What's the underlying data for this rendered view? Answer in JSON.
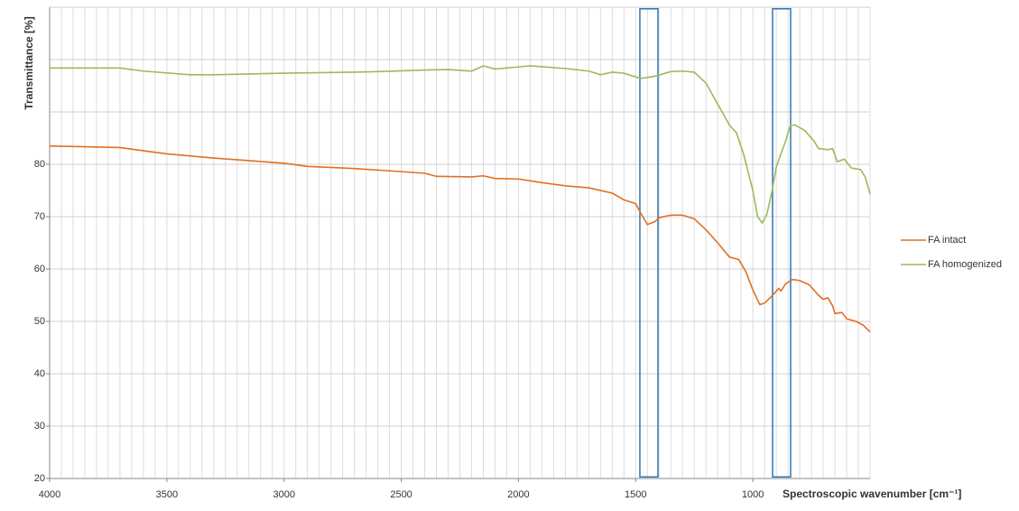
{
  "chart_data": {
    "type": "line",
    "y_label": "Transmittance [%]",
    "x_label": "Spectroscopic wavenumber [cm⁻¹]",
    "xlim": [
      4000,
      500
    ],
    "xticks": [
      4000,
      3500,
      3000,
      2500,
      2000,
      1500,
      1000
    ],
    "ylim": [
      20,
      110
    ],
    "yticks": [
      20,
      30,
      40,
      50,
      60,
      70,
      80
    ],
    "y_grid": [
      20,
      30,
      40,
      50,
      60,
      70,
      80,
      90,
      100,
      110
    ],
    "x_grid_step": 50,
    "grid": true,
    "legend": "right",
    "highlights": [
      {
        "x": [
          1482,
          1405
        ],
        "y": [
          20.3,
          109.7
        ],
        "color": "#2e75b6"
      },
      {
        "x": [
          916,
          839
        ],
        "y": [
          20.3,
          109.7
        ],
        "color": "#2e75b6"
      }
    ],
    "series": [
      {
        "name": "FA intact",
        "color": "#e07020",
        "x": [
          4000,
          3700,
          3500,
          3300,
          3000,
          2900,
          2700,
          2600,
          2400,
          2350,
          2200,
          2150,
          2100,
          2000,
          1900,
          1800,
          1700,
          1600,
          1550,
          1500,
          1480,
          1450,
          1420,
          1400,
          1350,
          1300,
          1250,
          1200,
          1150,
          1100,
          1060,
          1030,
          1000,
          970,
          950,
          920,
          890,
          880,
          860,
          830,
          800,
          760,
          720,
          700,
          680,
          660,
          650,
          620,
          600,
          560,
          530,
          500
        ],
        "values": [
          83.5,
          83.2,
          82,
          81.2,
          80.2,
          79.6,
          79.2,
          78.9,
          78.3,
          77.7,
          77.6,
          77.8,
          77.3,
          77.2,
          76.5,
          75.9,
          75.5,
          74.5,
          73.2,
          72.5,
          70.8,
          68.5,
          69,
          69.8,
          70.3,
          70.3,
          69.6,
          67.5,
          65,
          62.3,
          61.8,
          59.5,
          56,
          53.2,
          53.5,
          54.8,
          56.3,
          55.8,
          57.2,
          58,
          57.8,
          57,
          55,
          54.2,
          54.5,
          53,
          51.5,
          51.7,
          50.5,
          50,
          49.3,
          48
        ]
      },
      {
        "name": "FA homogenized",
        "color": "#9bbb59",
        "x": [
          4000,
          3700,
          3600,
          3400,
          3300,
          3000,
          2700,
          2600,
          2400,
          2300,
          2200,
          2150,
          2100,
          2000,
          1950,
          1800,
          1700,
          1650,
          1600,
          1550,
          1480,
          1420,
          1350,
          1300,
          1250,
          1200,
          1150,
          1100,
          1070,
          1040,
          1000,
          980,
          960,
          940,
          920,
          900,
          880,
          860,
          840,
          820,
          780,
          740,
          720,
          680,
          660,
          640,
          610,
          580,
          540,
          520,
          500
        ],
        "values": [
          98.4,
          98.4,
          97.8,
          97.1,
          97.1,
          97.4,
          97.6,
          97.7,
          98,
          98.1,
          97.8,
          98.8,
          98.2,
          98.6,
          98.8,
          98.3,
          97.8,
          97.1,
          97.6,
          97.4,
          96.4,
          96.8,
          97.7,
          97.8,
          97.6,
          95.5,
          91.5,
          87.5,
          86,
          82,
          75,
          70,
          68.8,
          70.5,
          74.5,
          79.5,
          82,
          84.5,
          87.5,
          87.5,
          86.5,
          84.5,
          83,
          82.8,
          83,
          80.5,
          81,
          79.3,
          79,
          77.5,
          74.3
        ]
      }
    ]
  }
}
